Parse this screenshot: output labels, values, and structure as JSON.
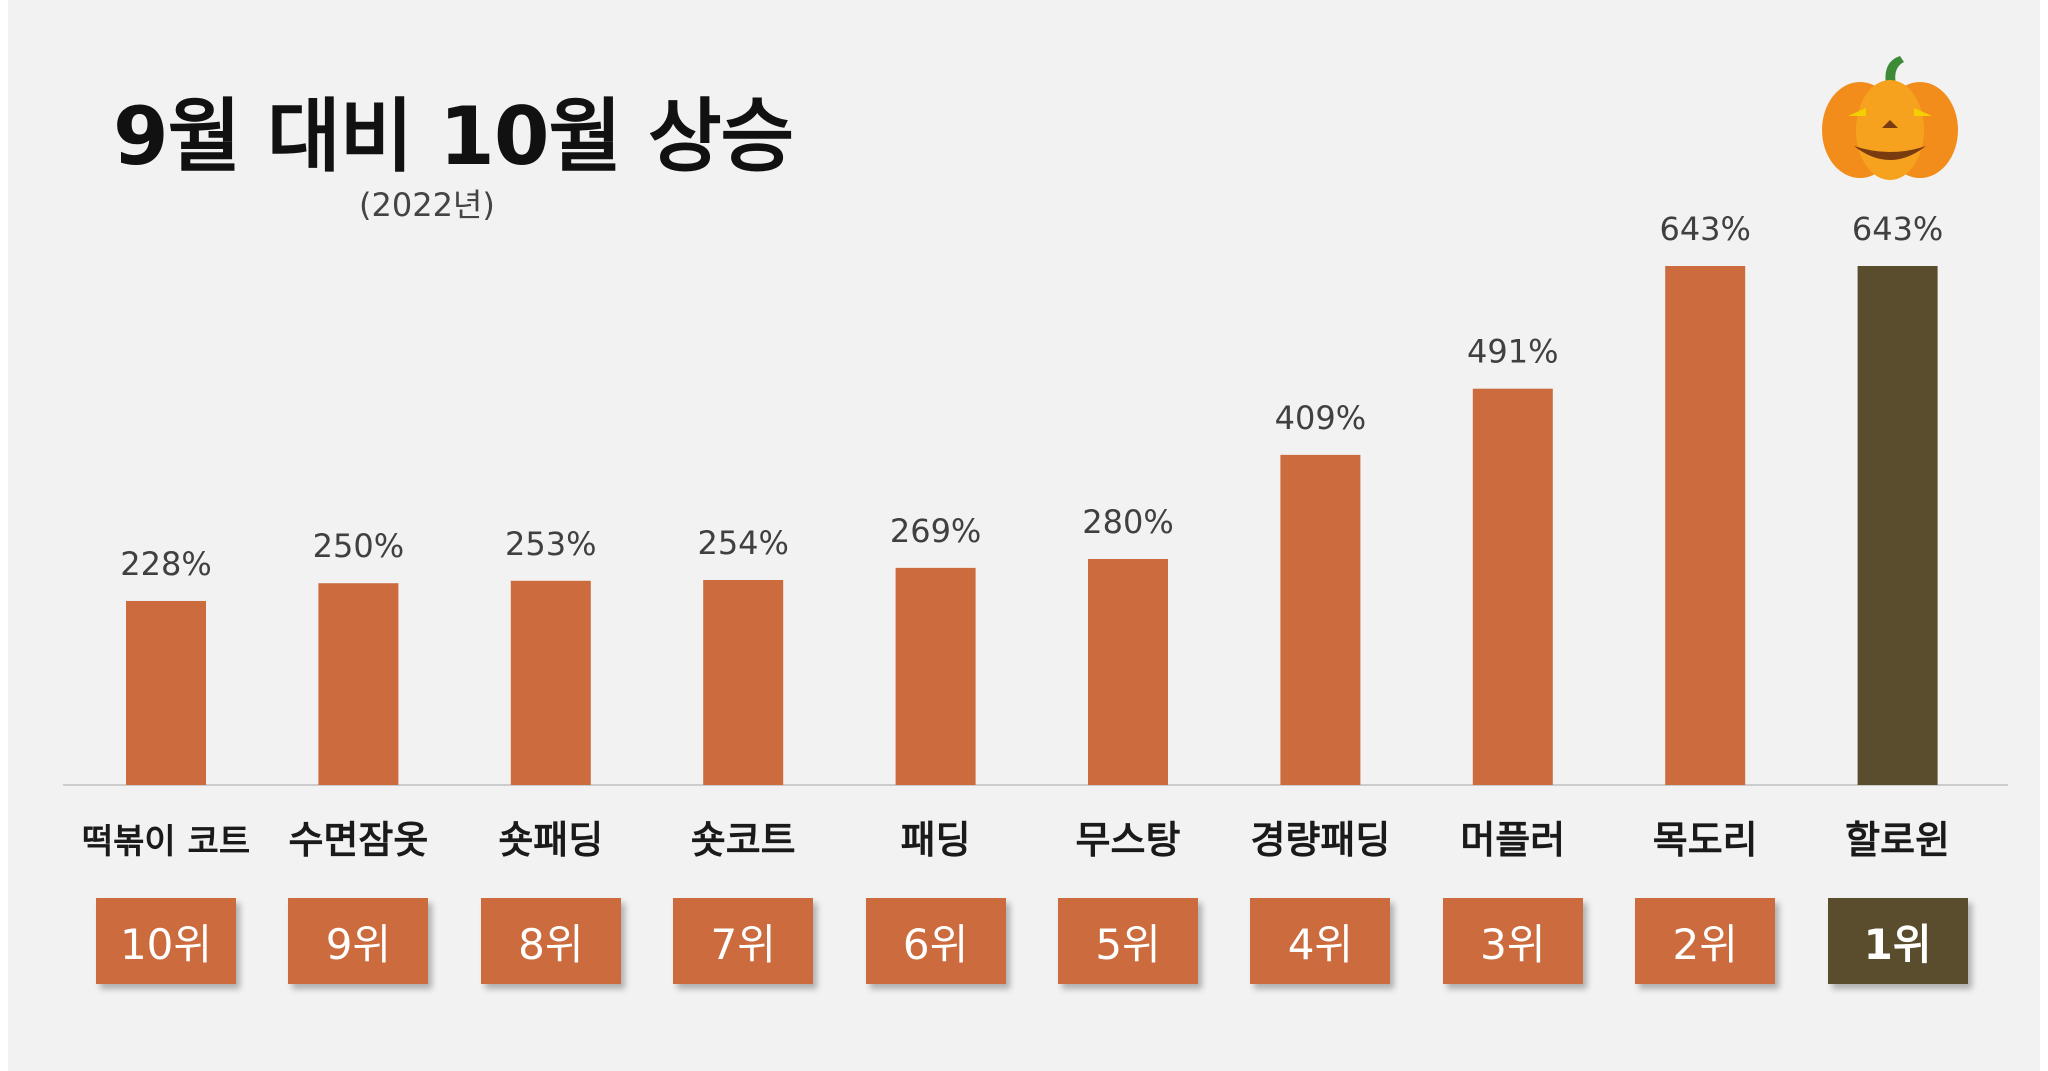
{
  "title": "9월 대비 10월 상승",
  "subtitle": "(2022년)",
  "colors": {
    "bar": "#cc6b3d",
    "highlight": "#5a4d2e",
    "axis": "#bfbfbf",
    "label": "#404040"
  },
  "chart_data": {
    "type": "bar",
    "title": "9월 대비 10월 상승",
    "subtitle": "(2022년)",
    "categories": [
      "떡볶이 코트",
      "수면잠옷",
      "숏패딩",
      "숏코트",
      "패딩",
      "무스탕",
      "경량패딩",
      "머플러",
      "목도리",
      "할로윈"
    ],
    "values": [
      228,
      250,
      253,
      254,
      269,
      280,
      409,
      491,
      643,
      643
    ],
    "value_labels": [
      "228%",
      "250%",
      "253%",
      "254%",
      "269%",
      "280%",
      "409%",
      "491%",
      "643%",
      "643%"
    ],
    "ranks": [
      "10위",
      "9위",
      "8위",
      "7위",
      "6위",
      "5위",
      "4위",
      "3위",
      "2위",
      "1위"
    ],
    "highlight_index": 9,
    "grid": false,
    "legend": "none"
  }
}
